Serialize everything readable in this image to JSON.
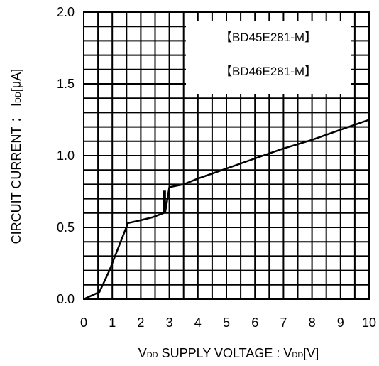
{
  "chart_data": {
    "type": "line",
    "title": "",
    "xlabel": {
      "main": "V",
      "sub": "DD",
      "text": " SUPPLY VOLTAGE : V",
      "sub2": "DD",
      "unit": "[V]"
    },
    "ylabel": {
      "text": "CIRCUIT CURRENT ： I",
      "sub": "DD",
      "unit": "[μA]"
    },
    "xlim": [
      0,
      10
    ],
    "ylim": [
      0,
      2.0
    ],
    "x_ticks": [
      "0",
      "1",
      "2",
      "3",
      "4",
      "5",
      "6",
      "7",
      "8",
      "9",
      "10"
    ],
    "y_ticks": [
      "0.0",
      "0.5",
      "1.0",
      "1.5",
      "2.0"
    ],
    "grid": true,
    "legend": [
      "【BD45E281-M】",
      "【BD46E281-M】"
    ],
    "series": [
      {
        "x": [
          0,
          0.55,
          0.9,
          1.55,
          2.0,
          2.4,
          2.8,
          2.8,
          2.85,
          2.85,
          3.0,
          3.5,
          4.0,
          5.0,
          6.0,
          7.0,
          8.0,
          9.0,
          10.0
        ],
        "y": [
          0,
          0.05,
          0.2,
          0.53,
          0.55,
          0.57,
          0.6,
          0.75,
          0.75,
          0.6,
          0.78,
          0.8,
          0.84,
          0.91,
          0.98,
          1.05,
          1.11,
          1.18,
          1.25
        ]
      }
    ]
  }
}
